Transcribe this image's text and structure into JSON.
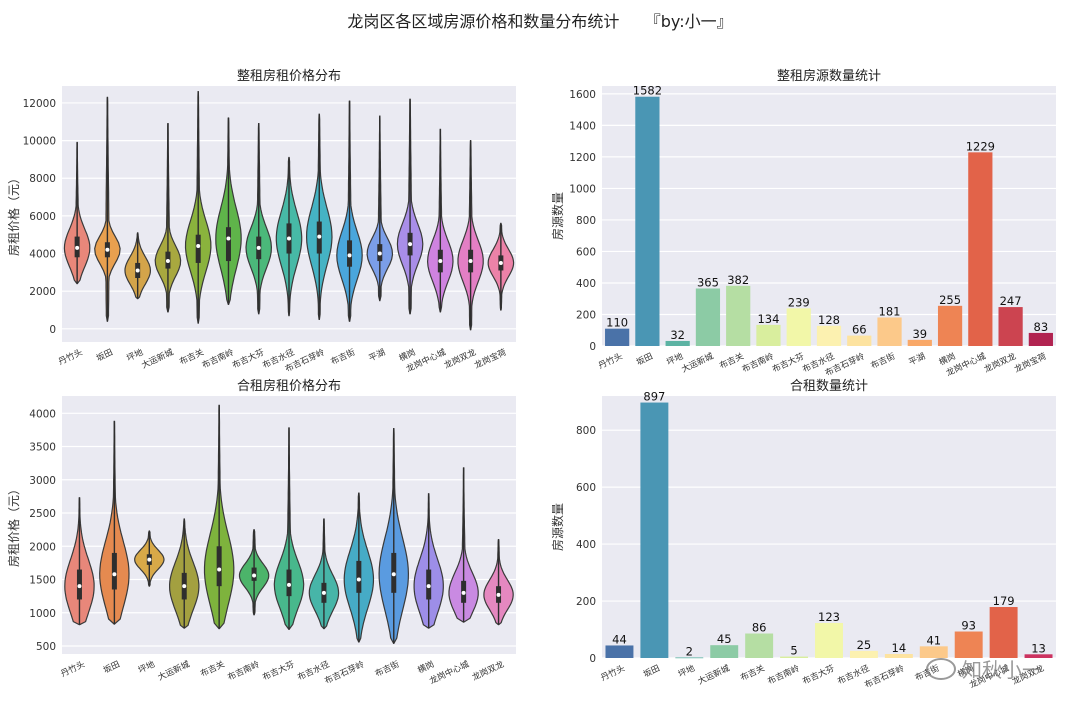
{
  "suptitle": "龙岗区各区域房源价格和数量分布统计     『by:小一』",
  "watermark": "知秋小一",
  "watermark_icon": "wechat-icon",
  "chart_data": [
    {
      "type": "violin",
      "title": "整租房租价格分布",
      "ylabel": "房租价格（元）",
      "ylim": [
        -700,
        12900
      ],
      "yticks": [
        0,
        2000,
        4000,
        6000,
        8000,
        10000,
        12000
      ],
      "categories": [
        "丹竹头",
        "坂田",
        "坪地",
        "大运新城",
        "布吉关",
        "布吉南岭",
        "布吉大芬",
        "布吉水径",
        "布吉石芽岭",
        "布吉街",
        "平湖",
        "横岗",
        "龙岗中心城",
        "龙岗双龙",
        "龙岗宝荷"
      ],
      "colors": [
        "#e8877a",
        "#e9a04f",
        "#d4a44a",
        "#a8a83f",
        "#8ab33d",
        "#5fb44a",
        "#4bb87a",
        "#47b9a6",
        "#45b3c4",
        "#4aa6dc",
        "#7b9ee8",
        "#a98ee8",
        "#cf83e0",
        "#e37fc4",
        "#ec82a8"
      ],
      "violins": [
        {
          "min": 2400,
          "q1": 3800,
          "median": 4300,
          "q3": 4900,
          "max": 9900
        },
        {
          "min": 400,
          "q1": 3800,
          "median": 4200,
          "q3": 4600,
          "max": 12300
        },
        {
          "min": 1600,
          "q1": 2700,
          "median": 3100,
          "q3": 3500,
          "max": 5100
        },
        {
          "min": 900,
          "q1": 3200,
          "median": 3600,
          "q3": 4100,
          "max": 10900
        },
        {
          "min": 300,
          "q1": 3500,
          "median": 4400,
          "q3": 5000,
          "max": 12600
        },
        {
          "min": 1300,
          "q1": 3600,
          "median": 4800,
          "q3": 5400,
          "max": 11200
        },
        {
          "min": 800,
          "q1": 3700,
          "median": 4300,
          "q3": 4900,
          "max": 10900
        },
        {
          "min": 700,
          "q1": 4000,
          "median": 4800,
          "q3": 5600,
          "max": 9100
        },
        {
          "min": 500,
          "q1": 4000,
          "median": 4900,
          "q3": 5700,
          "max": 11400
        },
        {
          "min": 400,
          "q1": 3300,
          "median": 3900,
          "q3": 4700,
          "max": 12100
        },
        {
          "min": 1500,
          "q1": 3600,
          "median": 4000,
          "q3": 4500,
          "max": 11300
        },
        {
          "min": 800,
          "q1": 3900,
          "median": 4500,
          "q3": 5100,
          "max": 12200
        },
        {
          "min": 900,
          "q1": 3000,
          "median": 3600,
          "q3": 4200,
          "max": 10600
        },
        {
          "min": -50,
          "q1": 3000,
          "median": 3600,
          "q3": 4200,
          "max": 10000
        },
        {
          "min": 1000,
          "q1": 3100,
          "median": 3500,
          "q3": 3900,
          "max": 5600
        }
      ]
    },
    {
      "type": "bar",
      "title": "整租房源数量统计",
      "ylabel": "房源数量",
      "ylim": [
        0,
        1650
      ],
      "yticks": [
        0,
        200,
        400,
        600,
        800,
        1000,
        1200,
        1400,
        1600
      ],
      "categories": [
        "丹竹头",
        "坂田",
        "坪地",
        "大运新城",
        "布吉关",
        "布吉南岭",
        "布吉大芬",
        "布吉水径",
        "布吉石芽岭",
        "布吉街",
        "平湖",
        "横岗",
        "龙岗中心城",
        "龙岗双龙",
        "龙岗宝荷"
      ],
      "values": [
        110,
        1582,
        32,
        365,
        382,
        134,
        239,
        128,
        66,
        181,
        39,
        255,
        1229,
        247,
        83
      ],
      "colors": [
        "#4a72a8",
        "#4a96b4",
        "#5cb3a3",
        "#8ccba5",
        "#b5dea3",
        "#d9ee9e",
        "#f2f7a8",
        "#fcf1b0",
        "#fde3a0",
        "#fcc98a",
        "#f9a868",
        "#ee8454",
        "#e26349",
        "#cc4450",
        "#b12350"
      ]
    },
    {
      "type": "violin",
      "title": "合租房租价格分布",
      "ylabel": "房租价格（元）",
      "ylim": [
        380,
        4260
      ],
      "yticks": [
        500,
        1000,
        1500,
        2000,
        2500,
        3000,
        3500,
        4000
      ],
      "categories": [
        "丹竹头",
        "坂田",
        "坪地",
        "大运新城",
        "布吉关",
        "布吉南岭",
        "布吉大芬",
        "布吉水径",
        "布吉石芽岭",
        "布吉街",
        "横岗",
        "龙岗中心城",
        "龙岗双龙"
      ],
      "colors": [
        "#e8877a",
        "#e58a50",
        "#d8a948",
        "#a3a040",
        "#7eb33d",
        "#4cb46a",
        "#48b88c",
        "#47b5a8",
        "#46abc6",
        "#5a9be0",
        "#9d8ee8",
        "#c98ae2",
        "#e588c0"
      ],
      "violins": [
        {
          "min": 820,
          "q1": 1200,
          "median": 1400,
          "q3": 1650,
          "max": 2730
        },
        {
          "min": 830,
          "q1": 1350,
          "median": 1580,
          "q3": 1900,
          "max": 3880
        },
        {
          "min": 1400,
          "q1": 1720,
          "median": 1800,
          "q3": 1880,
          "max": 2230
        },
        {
          "min": 770,
          "q1": 1200,
          "median": 1400,
          "q3": 1600,
          "max": 2410
        },
        {
          "min": 760,
          "q1": 1400,
          "median": 1650,
          "q3": 2000,
          "max": 4120
        },
        {
          "min": 970,
          "q1": 1480,
          "median": 1560,
          "q3": 1680,
          "max": 2250
        },
        {
          "min": 750,
          "q1": 1250,
          "median": 1420,
          "q3": 1650,
          "max": 3780
        },
        {
          "min": 760,
          "q1": 1150,
          "median": 1300,
          "q3": 1450,
          "max": 2410
        },
        {
          "min": 560,
          "q1": 1300,
          "median": 1500,
          "q3": 1780,
          "max": 2800
        },
        {
          "min": 540,
          "q1": 1300,
          "median": 1580,
          "q3": 1900,
          "max": 3770
        },
        {
          "min": 770,
          "q1": 1200,
          "median": 1400,
          "q3": 1650,
          "max": 2790
        },
        {
          "min": 860,
          "q1": 1150,
          "median": 1300,
          "q3": 1480,
          "max": 3180
        },
        {
          "min": 820,
          "q1": 1150,
          "median": 1270,
          "q3": 1400,
          "max": 2100
        }
      ]
    },
    {
      "type": "bar",
      "title": "合租数量统计",
      "ylabel": "房源数量",
      "ylim": [
        0,
        920
      ],
      "yticks": [
        0,
        200,
        400,
        600,
        800
      ],
      "categories": [
        "丹竹头",
        "坂田",
        "坪地",
        "大运新城",
        "布吉关",
        "布吉南岭",
        "布吉大芬",
        "布吉水径",
        "布吉石芽岭",
        "布吉街",
        "横岗",
        "龙岗中心城",
        "龙岗双龙"
      ],
      "values": [
        44,
        897,
        2,
        45,
        86,
        5,
        123,
        25,
        14,
        41,
        93,
        179,
        13
      ],
      "colors": [
        "#4a72a8",
        "#4a96b4",
        "#5cb3a3",
        "#8ccba5",
        "#b5dea3",
        "#d9ee9e",
        "#f2f7a8",
        "#fcf1b0",
        "#fde3a0",
        "#fcc98a",
        "#ee8454",
        "#e26349",
        "#cc3360"
      ]
    }
  ]
}
